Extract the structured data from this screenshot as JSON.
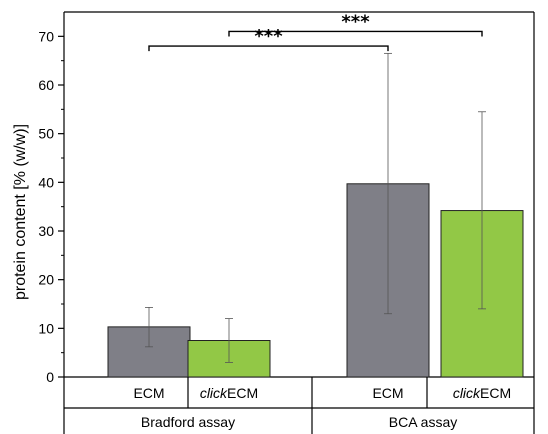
{
  "chart_data": {
    "type": "bar",
    "ylabel": "protein content [% (w/w)]",
    "ylim": [
      0,
      75
    ],
    "yticks": [
      0,
      10,
      20,
      30,
      40,
      50,
      60,
      70
    ],
    "groups": [
      "Bradford assay",
      "BCA assay"
    ],
    "bars": [
      {
        "group": "Bradford assay",
        "label_italic": "",
        "label_plain": "ECM",
        "value": 10.3,
        "err_low": 6.2,
        "err_high": 14.3,
        "color": "#7f7f87"
      },
      {
        "group": "Bradford assay",
        "label_italic": "click",
        "label_plain": "ECM",
        "value": 7.5,
        "err_low": 3.0,
        "err_high": 12.0,
        "color": "#92c846"
      },
      {
        "group": "BCA assay",
        "label_italic": "",
        "label_plain": "ECM",
        "value": 39.7,
        "err_low": 13.0,
        "err_high": 66.5,
        "color": "#7f7f87"
      },
      {
        "group": "BCA assay",
        "label_italic": "click",
        "label_plain": "ECM",
        "value": 34.2,
        "err_low": 14.0,
        "err_high": 54.5,
        "color": "#92c846"
      }
    ],
    "significance": [
      {
        "from_bar": 0,
        "to_bar": 2,
        "y": 68,
        "label": "***"
      },
      {
        "from_bar": 1,
        "to_bar": 3,
        "y": 71,
        "label": "***"
      }
    ],
    "grid": false,
    "legend": "none"
  }
}
